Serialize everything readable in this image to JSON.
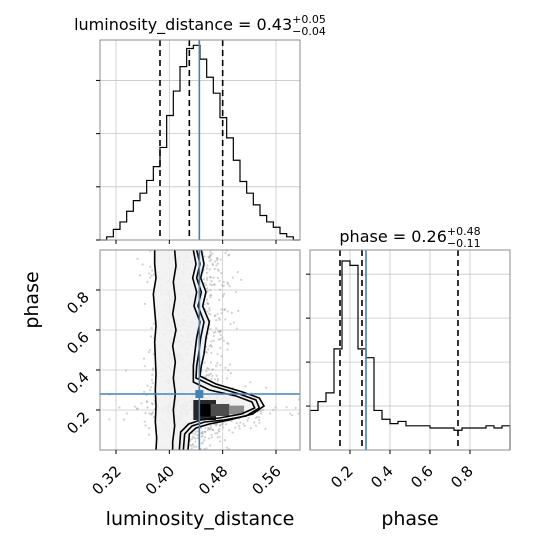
{
  "chart_data": [
    {
      "panel": "luminosity_distance-marginal",
      "type": "histogram",
      "title": {
        "prefix": "luminosity_distance = 0.43",
        "sup": "+0.05",
        "sub": "−0.04"
      },
      "bin_edges": [
        0.296,
        0.306,
        0.316,
        0.326,
        0.336,
        0.346,
        0.356,
        0.366,
        0.376,
        0.386,
        0.396,
        0.406,
        0.416,
        0.426,
        0.436,
        0.446,
        0.456,
        0.466,
        0.476,
        0.486,
        0.496,
        0.506,
        0.516,
        0.526,
        0.536,
        0.546,
        0.556,
        0.566,
        0.576,
        0.586,
        0.596
      ],
      "density": [
        0,
        0.3,
        1,
        1.7,
        2.7,
        3.7,
        4.4,
        5.6,
        6.9,
        8.7,
        11.7,
        14.0,
        16.3,
        18.0,
        18.3,
        17.0,
        15.3,
        13.8,
        11.5,
        9.6,
        7.5,
        5.5,
        4.4,
        3.3,
        2.3,
        1.7,
        1.2,
        0.6,
        0.3,
        0
      ],
      "xlim": [
        0.296,
        0.596
      ],
      "ylim": [
        0,
        18.8
      ],
      "yticks": [
        0,
        5,
        10,
        15
      ],
      "quantiles": [
        0.386,
        0.43,
        0.48
      ],
      "truth": 0.445
    },
    {
      "panel": "phase-marginal",
      "type": "histogram",
      "title": {
        "prefix": "phase = 0.26",
        "sup": "+0.48",
        "sub": "−0.11"
      },
      "bin_edges": [
        0.0,
        0.04,
        0.08,
        0.12,
        0.16,
        0.2,
        0.24,
        0.28,
        0.32,
        0.36,
        0.4,
        0.44,
        0.48,
        0.52,
        0.56,
        0.6,
        0.64,
        0.68,
        0.72,
        0.76,
        0.8,
        0.84,
        0.88,
        0.92,
        0.96,
        1.0
      ],
      "density": [
        0.9,
        1.1,
        1.3,
        2.3,
        4.3,
        4.2,
        2.3,
        2.1,
        0.9,
        0.7,
        0.6,
        0.65,
        0.55,
        0.55,
        0.55,
        0.5,
        0.5,
        0.5,
        0.45,
        0.5,
        0.5,
        0.5,
        0.55,
        0.5,
        0.55
      ],
      "xlim": [
        0.0,
        1.0
      ],
      "ylim": [
        0,
        4.55
      ],
      "xticks": [
        0.2,
        0.4,
        0.6,
        0.8
      ],
      "xticklabels": [
        "0.2",
        "0.4",
        "0.6",
        "0.8"
      ],
      "yticks": [
        1,
        2,
        3,
        4
      ],
      "quantiles": [
        0.15,
        0.26,
        0.74
      ],
      "truth": 0.28,
      "xlabel": "phase"
    },
    {
      "panel": "luminosity_distance-vs-phase",
      "type": "scatter",
      "xlabel": "luminosity_distance",
      "ylabel": "phase",
      "xlim": [
        0.296,
        0.596
      ],
      "ylim": [
        0.0,
        1.0
      ],
      "xticks": [
        0.32,
        0.4,
        0.48,
        0.56
      ],
      "xticklabels": [
        "0.32",
        "0.40",
        "0.48",
        "0.56"
      ],
      "yticks": [
        0.2,
        0.4,
        0.6,
        0.8
      ],
      "yticklabels": [
        "0.2",
        "0.4",
        "0.6",
        "0.8"
      ],
      "truth": {
        "x": 0.445,
        "y": 0.28
      },
      "contours": [
        [
          [
            0.378,
            1.0
          ],
          [
            0.378,
            0.93
          ],
          [
            0.38,
            0.86
          ],
          [
            0.376,
            0.78
          ],
          [
            0.378,
            0.7
          ],
          [
            0.38,
            0.62
          ],
          [
            0.378,
            0.54
          ],
          [
            0.379,
            0.46
          ],
          [
            0.38,
            0.38
          ],
          [
            0.379,
            0.3
          ],
          [
            0.38,
            0.22
          ],
          [
            0.379,
            0.14
          ],
          [
            0.381,
            0.06
          ],
          [
            0.38,
            0.0
          ]
        ],
        [
          [
            0.408,
            1.0
          ],
          [
            0.41,
            0.92
          ],
          [
            0.406,
            0.84
          ],
          [
            0.409,
            0.76
          ],
          [
            0.405,
            0.68
          ],
          [
            0.41,
            0.6
          ],
          [
            0.405,
            0.52
          ],
          [
            0.409,
            0.44
          ],
          [
            0.406,
            0.36
          ],
          [
            0.409,
            0.28
          ],
          [
            0.406,
            0.2
          ],
          [
            0.408,
            0.12
          ],
          [
            0.405,
            0.04
          ],
          [
            0.405,
            0.0
          ]
        ],
        [
          [
            0.448,
            1.0
          ],
          [
            0.452,
            0.93
          ],
          [
            0.447,
            0.86
          ],
          [
            0.455,
            0.79
          ],
          [
            0.45,
            0.72
          ],
          [
            0.46,
            0.64
          ],
          [
            0.455,
            0.56
          ],
          [
            0.452,
            0.48
          ],
          [
            0.448,
            0.42
          ],
          [
            0.446,
            0.37
          ],
          [
            0.47,
            0.33
          ],
          [
            0.51,
            0.29
          ],
          [
            0.535,
            0.26
          ],
          [
            0.542,
            0.22
          ],
          [
            0.525,
            0.18
          ],
          [
            0.49,
            0.15
          ],
          [
            0.46,
            0.13
          ],
          [
            0.44,
            0.11
          ],
          [
            0.43,
            0.08
          ],
          [
            0.428,
            0.0
          ]
        ],
        [
          [
            0.441,
            1.0
          ],
          [
            0.446,
            0.93
          ],
          [
            0.441,
            0.86
          ],
          [
            0.448,
            0.79
          ],
          [
            0.443,
            0.72
          ],
          [
            0.452,
            0.64
          ],
          [
            0.447,
            0.56
          ],
          [
            0.444,
            0.48
          ],
          [
            0.441,
            0.42
          ],
          [
            0.44,
            0.36
          ],
          [
            0.465,
            0.32
          ],
          [
            0.505,
            0.28
          ],
          [
            0.53,
            0.25
          ],
          [
            0.535,
            0.21
          ],
          [
            0.515,
            0.17
          ],
          [
            0.482,
            0.15
          ],
          [
            0.453,
            0.14
          ],
          [
            0.434,
            0.12
          ],
          [
            0.423,
            0.08
          ],
          [
            0.421,
            0.0
          ]
        ],
        [
          [
            0.436,
            1.0
          ],
          [
            0.44,
            0.93
          ],
          [
            0.435,
            0.86
          ],
          [
            0.441,
            0.79
          ],
          [
            0.437,
            0.72
          ],
          [
            0.446,
            0.64
          ],
          [
            0.441,
            0.56
          ],
          [
            0.438,
            0.48
          ],
          [
            0.436,
            0.42
          ],
          [
            0.436,
            0.34
          ],
          [
            0.46,
            0.3
          ],
          [
            0.5,
            0.27
          ],
          [
            0.524,
            0.24
          ],
          [
            0.528,
            0.21
          ],
          [
            0.508,
            0.18
          ],
          [
            0.475,
            0.16
          ],
          [
            0.447,
            0.15
          ],
          [
            0.429,
            0.13
          ],
          [
            0.417,
            0.09
          ],
          [
            0.415,
            0.0
          ]
        ]
      ],
      "density_blocks": [
        {
          "x": [
            0.436,
            0.47
          ],
          "y": [
            0.15,
            0.25
          ],
          "level": 0.85
        },
        {
          "x": [
            0.446,
            0.462
          ],
          "y": [
            0.168,
            0.23
          ],
          "level": 1.0
        },
        {
          "x": [
            0.462,
            0.49
          ],
          "y": [
            0.17,
            0.23
          ],
          "level": 0.7
        },
        {
          "x": [
            0.49,
            0.512
          ],
          "y": [
            0.178,
            0.222
          ],
          "level": 0.45
        }
      ]
    }
  ]
}
